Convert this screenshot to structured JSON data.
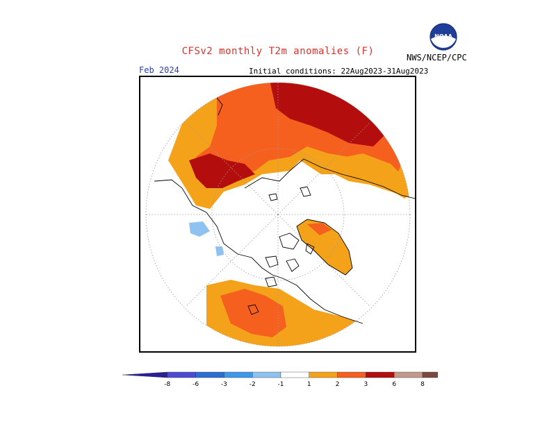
{
  "header": {
    "title": "CFSv2 monthly T2m anomalies (F)",
    "month": "Feb 2024",
    "initial_conditions": "Initial conditions: 22Aug2023-31Aug2023",
    "agency": "NWS/NCEP/CPC",
    "logo_text": "NOAA"
  },
  "map": {
    "projection": "north-polar-stereographic",
    "colors": {
      "anom_1_2": "#f5a21b",
      "anom_2_3": "#f5601e",
      "anom_3_6": "#b30d0d",
      "anom_neg_1": "#8ec2f0",
      "coastline": "#000000",
      "graticule": "#9a9a9a"
    }
  },
  "colorbar": {
    "ticks": [
      "-8",
      "-6",
      "-3",
      "-2",
      "-1",
      "1",
      "2",
      "3",
      "6",
      "8"
    ],
    "colors": [
      "#2a1f99",
      "#4b49d6",
      "#2b6fd2",
      "#3f98ec",
      "#8ec2f0",
      "#ffffff",
      "#f5a21b",
      "#f5601e",
      "#b30d0d",
      "#c29a8d",
      "#7a4a3e"
    ]
  }
}
